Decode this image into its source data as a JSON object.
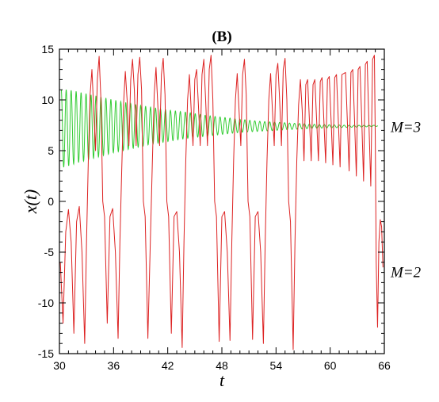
{
  "chart_data": {
    "type": "line",
    "title": "(B)",
    "xlabel": "t",
    "ylabel": "x(t)",
    "xlim": [
      30,
      66
    ],
    "ylim": [
      -15,
      15
    ],
    "x_ticks": [
      "30",
      "36",
      "42",
      "48",
      "54",
      "60",
      "66"
    ],
    "y_ticks": [
      "15",
      "10",
      "5",
      "0",
      "-5",
      "-10",
      "-15"
    ],
    "grid": false,
    "series": [
      {
        "name": "M=3",
        "color": "#33cc33",
        "description_values": {
          "t": [
            30.2,
            31,
            32,
            34,
            36,
            38,
            40,
            42,
            44,
            46,
            48,
            50,
            52,
            54,
            56,
            58,
            60,
            62,
            64,
            65.3
          ],
          "upper": [
            11.0,
            11.0,
            10.8,
            10.4,
            10.0,
            9.6,
            9.3,
            9.0,
            8.8,
            8.5,
            8.3,
            8.1,
            7.9,
            7.8,
            7.7,
            7.6,
            7.55,
            7.5,
            7.5,
            7.5
          ],
          "lower": [
            3.3,
            3.5,
            3.8,
            4.3,
            4.8,
            5.2,
            5.6,
            5.9,
            6.2,
            6.4,
            6.6,
            6.8,
            6.9,
            7.0,
            7.1,
            7.2,
            7.25,
            7.3,
            7.35,
            7.4
          ]
        },
        "period": 0.55
      },
      {
        "name": "M=2",
        "color": "#dd2222",
        "values": [
          [
            30.1,
            -6.0
          ],
          [
            30.4,
            -12.0
          ],
          [
            30.7,
            -3.0
          ],
          [
            31.0,
            -0.8
          ],
          [
            31.3,
            -4.0
          ],
          [
            31.6,
            -13.0
          ],
          [
            31.9,
            -2.0
          ],
          [
            32.2,
            -0.5
          ],
          [
            32.5,
            -5.0
          ],
          [
            32.8,
            -14.0
          ],
          [
            33.0,
            -4.0
          ],
          [
            33.2,
            4.0
          ],
          [
            33.4,
            10.5
          ],
          [
            33.6,
            13.0
          ],
          [
            33.8,
            9.0
          ],
          [
            34.0,
            5.0
          ],
          [
            34.2,
            12.0
          ],
          [
            34.4,
            14.3
          ],
          [
            34.6,
            10.0
          ],
          [
            34.8,
            0.0
          ],
          [
            35.0,
            -1.5
          ],
          [
            35.3,
            -12.0
          ],
          [
            35.6,
            -1.5
          ],
          [
            35.9,
            -0.7
          ],
          [
            36.2,
            -5.0
          ],
          [
            36.5,
            -13.5
          ],
          [
            36.7,
            -4.0
          ],
          [
            36.9,
            3.0
          ],
          [
            37.1,
            9.5
          ],
          [
            37.3,
            12.8
          ],
          [
            37.5,
            10.0
          ],
          [
            37.7,
            5.5
          ],
          [
            37.9,
            12.0
          ],
          [
            38.1,
            14.0
          ],
          [
            38.3,
            11.0
          ],
          [
            38.5,
            5.5
          ],
          [
            38.7,
            12.5
          ],
          [
            38.9,
            14.2
          ],
          [
            39.1,
            11.0
          ],
          [
            39.3,
            0.0
          ],
          [
            39.5,
            -1.5
          ],
          [
            39.8,
            -13.5
          ],
          [
            40.1,
            -3.0
          ],
          [
            40.3,
            4.0
          ],
          [
            40.5,
            10.5
          ],
          [
            40.7,
            13.2
          ],
          [
            40.9,
            9.5
          ],
          [
            41.1,
            5.5
          ],
          [
            41.3,
            12.5
          ],
          [
            41.5,
            14.1
          ],
          [
            41.7,
            10.5
          ],
          [
            41.9,
            0.0
          ],
          [
            42.1,
            -1.5
          ],
          [
            42.4,
            -13.0
          ],
          [
            42.7,
            -1.5
          ],
          [
            43.0,
            -1.0
          ],
          [
            43.3,
            -5.0
          ],
          [
            43.6,
            -14.4
          ],
          [
            43.8,
            -4.0
          ],
          [
            44.0,
            4.0
          ],
          [
            44.2,
            10.0
          ],
          [
            44.4,
            12.5
          ],
          [
            44.6,
            9.0
          ],
          [
            44.8,
            5.5
          ],
          [
            45.0,
            12.0
          ],
          [
            45.2,
            13.0
          ],
          [
            45.4,
            9.5
          ],
          [
            45.6,
            5.5
          ],
          [
            45.8,
            12.5
          ],
          [
            46.0,
            14.0
          ],
          [
            46.2,
            10.0
          ],
          [
            46.4,
            5.5
          ],
          [
            46.6,
            13.0
          ],
          [
            46.8,
            14.4
          ],
          [
            47.0,
            10.0
          ],
          [
            47.2,
            0.0
          ],
          [
            47.4,
            -1.5
          ],
          [
            47.7,
            -13.8
          ],
          [
            48.0,
            -1.5
          ],
          [
            48.3,
            -1.0
          ],
          [
            48.6,
            -5.0
          ],
          [
            48.9,
            -13.7
          ],
          [
            49.1,
            -4.0
          ],
          [
            49.3,
            4.0
          ],
          [
            49.5,
            10.0
          ],
          [
            49.7,
            12.6
          ],
          [
            49.9,
            9.0
          ],
          [
            50.1,
            5.5
          ],
          [
            50.3,
            12.5
          ],
          [
            50.5,
            14.0
          ],
          [
            50.7,
            10.5
          ],
          [
            50.9,
            0.0
          ],
          [
            51.1,
            -1.5
          ],
          [
            51.4,
            -13.6
          ],
          [
            51.7,
            -1.5
          ],
          [
            52.0,
            -1.0
          ],
          [
            52.3,
            -5.0
          ],
          [
            52.6,
            -14.0
          ],
          [
            52.8,
            -4.0
          ],
          [
            53.0,
            4.0
          ],
          [
            53.2,
            10.0
          ],
          [
            53.4,
            12.6
          ],
          [
            53.6,
            9.0
          ],
          [
            53.8,
            5.5
          ],
          [
            54.0,
            12.5
          ],
          [
            54.2,
            13.6
          ],
          [
            54.4,
            10.0
          ],
          [
            54.6,
            5.5
          ],
          [
            54.8,
            13.0
          ],
          [
            55.0,
            14.1
          ],
          [
            55.2,
            10.0
          ],
          [
            55.4,
            0.0
          ],
          [
            55.6,
            -2.0
          ],
          [
            55.9,
            -14.6
          ],
          [
            56.1,
            -4.0
          ],
          [
            56.3,
            4.0
          ],
          [
            56.5,
            9.5
          ],
          [
            56.7,
            12.0
          ],
          [
            56.9,
            9.0
          ],
          [
            57.1,
            4.0
          ],
          [
            57.3,
            11.5
          ],
          [
            57.5,
            12.0
          ],
          [
            57.7,
            8.0
          ],
          [
            57.9,
            4.0
          ],
          [
            58.1,
            11.5
          ],
          [
            58.3,
            12.0
          ],
          [
            58.5,
            8.0
          ],
          [
            58.7,
            4.0
          ],
          [
            58.9,
            11.8
          ],
          [
            59.1,
            12.2
          ],
          [
            59.3,
            8.0
          ],
          [
            59.5,
            3.8
          ],
          [
            59.7,
            12.0
          ],
          [
            59.9,
            12.3
          ],
          [
            60.1,
            8.0
          ],
          [
            60.3,
            3.6
          ],
          [
            60.5,
            12.2
          ],
          [
            60.7,
            12.5
          ],
          [
            60.9,
            8.0
          ],
          [
            61.1,
            3.4
          ],
          [
            61.3,
            12.5
          ],
          [
            61.7,
            12.7
          ],
          [
            61.9,
            8.0
          ],
          [
            62.1,
            3.0
          ],
          [
            62.3,
            12.7
          ],
          [
            62.5,
            13.0
          ],
          [
            62.7,
            8.0
          ],
          [
            62.9,
            2.5
          ],
          [
            63.1,
            13.0
          ],
          [
            63.3,
            13.3
          ],
          [
            63.5,
            8.0
          ],
          [
            63.7,
            2.0
          ],
          [
            63.9,
            13.5
          ],
          [
            64.1,
            13.8
          ],
          [
            64.3,
            7.5
          ],
          [
            64.5,
            1.5
          ],
          [
            64.7,
            14.0
          ],
          [
            64.9,
            14.4
          ],
          [
            65.0,
            6.0
          ],
          [
            65.1,
            -6.0
          ],
          [
            65.25,
            -12.4
          ],
          [
            65.4,
            -4.0
          ],
          [
            65.55,
            -1.8
          ],
          [
            65.7,
            -2.5
          ],
          [
            65.85,
            -6.5
          ]
        ]
      }
    ],
    "annotations": [
      {
        "text": "M=3",
        "x": 66.7,
        "y": 7.3
      },
      {
        "text": "M=2",
        "x": 66.7,
        "y": -7.0
      }
    ]
  }
}
